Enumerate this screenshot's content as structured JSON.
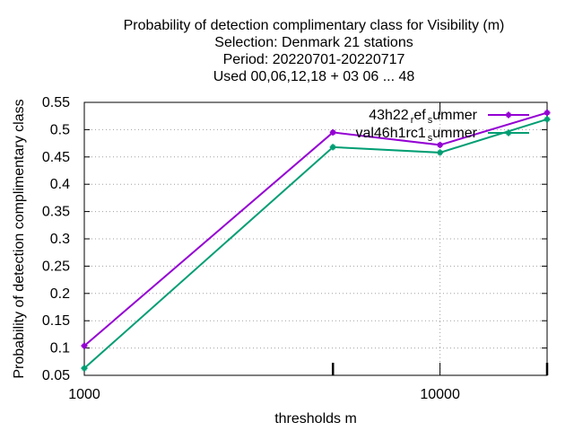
{
  "chart_data": {
    "type": "line",
    "title_lines": [
      "Probability of detection complimentary class  for Visibility (m)",
      "Selection: Denmark     21 stations",
      "Period: 20220701-20220717",
      "Used  00,06,12,18  + 03 06 ... 48"
    ],
    "xlabel": "thresholds m",
    "ylabel": "Probability of detection complimentary class",
    "x_scale": "log",
    "xlim": [
      1000,
      20000
    ],
    "ylim": [
      0.05,
      0.55
    ],
    "x_ticks": [
      {
        "value": 1000,
        "label": "1000"
      },
      {
        "value": 10000,
        "label": "10000"
      }
    ],
    "x_minor_ticks": [
      5000,
      20000
    ],
    "y_ticks": [
      "0.05",
      "0.1",
      "0.15",
      "0.2",
      "0.25",
      "0.3",
      "0.35",
      "0.4",
      "0.45",
      "0.5",
      "0.55"
    ],
    "grid": true,
    "legend_position": "top-right",
    "series": [
      {
        "legend_parts": [
          "43h22",
          "r",
          "ef",
          "s",
          "ummer"
        ],
        "color": "#9400d3",
        "points": [
          [
            1000,
            0.104
          ],
          [
            5000,
            0.495
          ],
          [
            10000,
            0.472
          ],
          [
            20000,
            0.531
          ]
        ]
      },
      {
        "legend_parts": [
          "val46h1rc1",
          "s",
          "ummer"
        ],
        "color": "#009e73",
        "points": [
          [
            1000,
            0.063
          ],
          [
            5000,
            0.468
          ],
          [
            10000,
            0.458
          ],
          [
            20000,
            0.519
          ]
        ]
      }
    ]
  }
}
